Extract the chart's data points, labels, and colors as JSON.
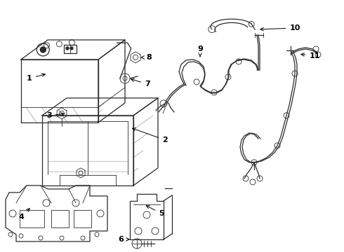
{
  "bg_color": "#ffffff",
  "line_color": "#2a2a2a",
  "label_color": "#000000",
  "figsize": [
    4.9,
    3.6
  ],
  "dpi": 100,
  "lw_main": 0.9,
  "lw_thin": 0.6,
  "lw_thick": 1.1
}
